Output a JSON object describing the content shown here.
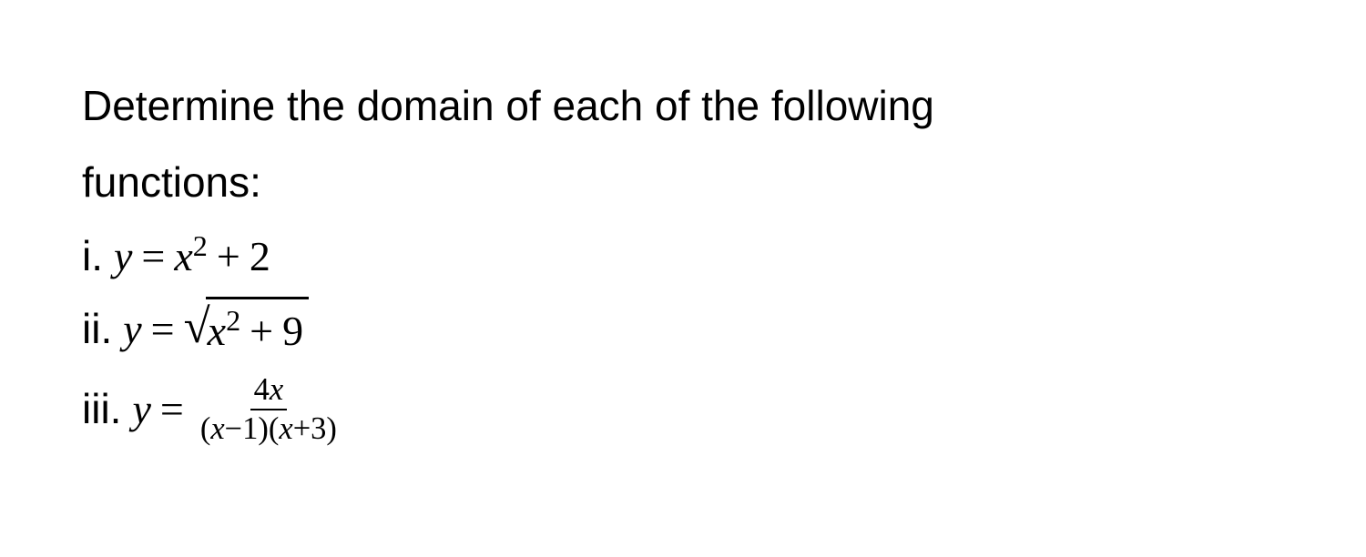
{
  "question": {
    "line1": "Determine the domain of each of the following",
    "line2": "functions:"
  },
  "items": {
    "i": {
      "label": "i.",
      "var_y": "y",
      "eq": "=",
      "var_x": "x",
      "exp": "2",
      "plus": "+",
      "const": "2"
    },
    "ii": {
      "label": "ii.",
      "var_y": "y",
      "eq": "=",
      "sqrt_sym": "√",
      "var_x": "x",
      "exp": "2",
      "plus": "+",
      "const": "9"
    },
    "iii": {
      "label": "iii.",
      "var_y": "y",
      "eq": "=",
      "num_coef": "4",
      "num_var": "x",
      "den_lp1": "(",
      "den_x1": "x",
      "den_minus": "−",
      "den_c1": "1",
      "den_rp1": ")",
      "den_lp2": "(",
      "den_x2": "x",
      "den_plus": "+",
      "den_c2": "3",
      "den_rp2": ")"
    }
  },
  "style": {
    "background_color": "#ffffff",
    "text_color": "#000000",
    "body_fontsize": 46,
    "math_font": "Times New Roman"
  }
}
